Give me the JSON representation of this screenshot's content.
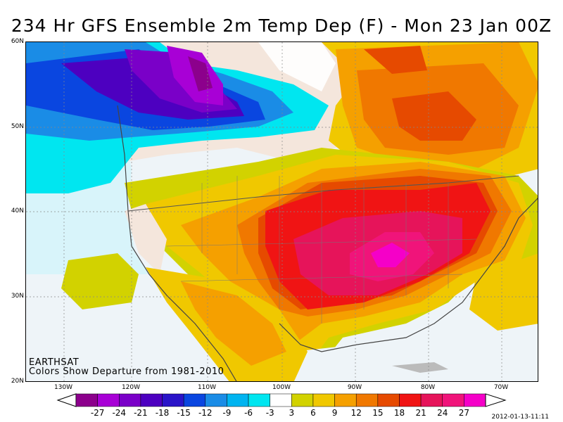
{
  "title": "234 Hr GFS Ensemble 2m Temp Dep (F) - Mon 23 Jan 00Z",
  "latitudes": [
    "60N",
    "50N",
    "40N",
    "30N",
    "20N"
  ],
  "longitudes": [
    "130W",
    "120W",
    "110W",
    "100W",
    "90W",
    "80W",
    "70W"
  ],
  "source": "EARTHSAT",
  "subtitle": "Colors Show Departure from 1981-2010",
  "timestamp": "2012-01-13-11:11",
  "legend": {
    "ticks": [
      "-27",
      "-24",
      "-21",
      "-18",
      "-15",
      "-12",
      "-9",
      "-6",
      "-3",
      "3",
      "6",
      "9",
      "12",
      "15",
      "18",
      "21",
      "24",
      "27"
    ],
    "colors": [
      "#8c008c",
      "#a800d6",
      "#7a00c8",
      "#4d00c0",
      "#2a14c8",
      "#0a46e0",
      "#1a8ce6",
      "#00b4f0",
      "#00e6f0",
      "#ffffff",
      "#d2d200",
      "#f0c800",
      "#f5a000",
      "#f07800",
      "#e64a00",
      "#f01414",
      "#e6145a",
      "#f0147a",
      "#f500c8"
    ]
  },
  "colors": {
    "ocean": "#eef4f8",
    "land_neutral": "#f4e6dc",
    "border": "#000000"
  }
}
